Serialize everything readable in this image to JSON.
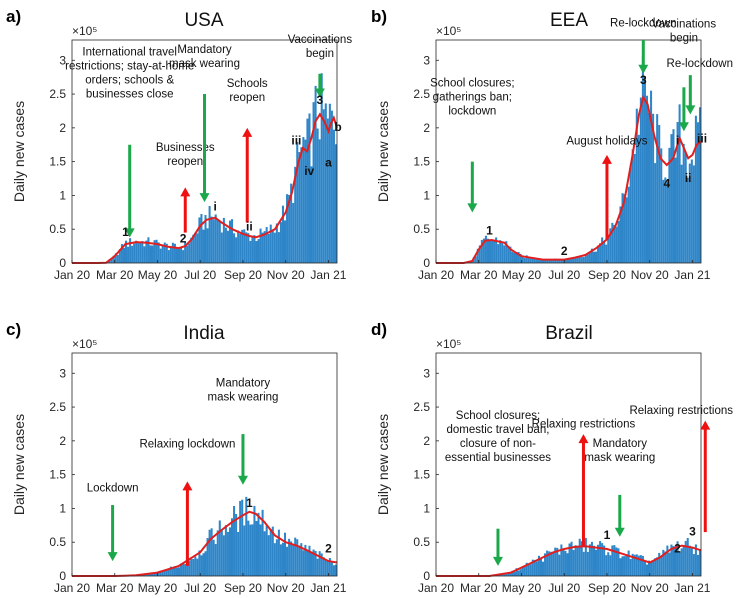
{
  "chart_data": [
    {
      "type": "bar",
      "panel_label": "a)",
      "title": "USA",
      "ylabel": "Daily new cases",
      "yexp": "×10⁵",
      "ylim": [
        0,
        3.3
      ],
      "yticks": [
        "0",
        "0.5",
        "1",
        "1.5",
        "2",
        "2.5",
        "3"
      ],
      "xticks": [
        "Jan 20",
        "Mar 20",
        "May 20",
        "Jul 20",
        "Sep 20",
        "Nov 20",
        "Jan 21"
      ],
      "xlim": [
        0,
        12.4
      ],
      "bar_color": "#2e86c9",
      "line_color": "#e02020",
      "trend_points": [
        [
          0,
          0
        ],
        [
          1.2,
          0
        ],
        [
          1.6,
          0.005
        ],
        [
          2.0,
          0.1
        ],
        [
          2.5,
          0.28
        ],
        [
          3.0,
          0.31
        ],
        [
          3.5,
          0.3
        ],
        [
          4.0,
          0.28
        ],
        [
          4.5,
          0.24
        ],
        [
          5.0,
          0.22
        ],
        [
          5.3,
          0.25
        ],
        [
          5.6,
          0.35
        ],
        [
          6.0,
          0.55
        ],
        [
          6.3,
          0.64
        ],
        [
          6.7,
          0.67
        ],
        [
          7.0,
          0.6
        ],
        [
          7.5,
          0.5
        ],
        [
          8.0,
          0.43
        ],
        [
          8.3,
          0.4
        ],
        [
          8.6,
          0.38
        ],
        [
          9.0,
          0.42
        ],
        [
          9.5,
          0.5
        ],
        [
          10.0,
          0.75
        ],
        [
          10.3,
          1.05
        ],
        [
          10.6,
          1.5
        ],
        [
          10.8,
          1.7
        ],
        [
          11.0,
          1.65
        ],
        [
          11.2,
          1.85
        ],
        [
          11.4,
          2.1
        ],
        [
          11.6,
          2.2
        ],
        [
          11.8,
          2.1
        ],
        [
          12.0,
          1.95
        ],
        [
          12.1,
          2.05
        ],
        [
          12.25,
          2.15
        ],
        [
          12.4,
          2.0
        ]
      ],
      "annotations": [
        {
          "text": [
            "International travel",
            "restrictions; stay-at-home",
            "orders; schools &",
            "businesses close"
          ],
          "x": 2.7,
          "y_text": 2.45,
          "arrow": "green",
          "arrow_from": 1.75,
          "arrow_to": 0.38
        },
        {
          "text": [
            "Businesses",
            "reopen"
          ],
          "x": 5.3,
          "y_text": 1.45,
          "arrow": "red",
          "arrow_from": 0.45,
          "arrow_to": 1.12
        },
        {
          "text": [
            "Mandatory",
            "mask wearing"
          ],
          "x": 6.2,
          "y_text": 2.9,
          "arrow": "green",
          "arrow_from": 2.5,
          "arrow_to": 0.9
        },
        {
          "text": [
            "Schools",
            "reopen"
          ],
          "x": 8.2,
          "y_text": 2.4,
          "arrow": "red",
          "arrow_from": 0.6,
          "arrow_to": 2.0
        },
        {
          "text": [
            "Vaccinations",
            "begin"
          ],
          "x": 11.6,
          "y_text": 3.05,
          "arrow": "green",
          "arrow_from": 2.8,
          "arrow_to": 2.45
        }
      ],
      "markers": [
        {
          "label": "1",
          "x": 2.5,
          "y": 0.4
        },
        {
          "label": "2",
          "x": 5.2,
          "y": 0.3
        },
        {
          "label": "i",
          "x": 6.7,
          "y": 0.78
        },
        {
          "label": "ii",
          "x": 8.3,
          "y": 0.48
        },
        {
          "label": "iii",
          "x": 10.5,
          "y": 1.75
        },
        {
          "label": "iv",
          "x": 11.1,
          "y": 1.3
        },
        {
          "label": "3",
          "x": 11.6,
          "y": 2.35
        },
        {
          "label": "a",
          "x": 12.0,
          "y": 1.43
        },
        {
          "label": "b",
          "x": 12.45,
          "y": 1.95
        }
      ]
    },
    {
      "type": "bar",
      "panel_label": "b)",
      "title": "EEA",
      "ylabel": "Daily new cases",
      "yexp": "×10⁵",
      "ylim": [
        0,
        3.3
      ],
      "yticks": [
        "0",
        "0.5",
        "1",
        "1.5",
        "2",
        "2.5",
        "3"
      ],
      "xticks": [
        "Jan 20",
        "Mar 20",
        "May 20",
        "Jul 20",
        "Sep 20",
        "Nov 20",
        "Jan 21"
      ],
      "xlim": [
        0,
        12.4
      ],
      "bar_color": "#2e86c9",
      "line_color": "#e02020",
      "trend_points": [
        [
          0,
          0
        ],
        [
          1.3,
          0
        ],
        [
          1.7,
          0.03
        ],
        [
          2.0,
          0.2
        ],
        [
          2.3,
          0.33
        ],
        [
          2.6,
          0.34
        ],
        [
          2.9,
          0.32
        ],
        [
          3.2,
          0.3
        ],
        [
          3.5,
          0.2
        ],
        [
          4.0,
          0.1
        ],
        [
          5.0,
          0.05
        ],
        [
          6.0,
          0.05
        ],
        [
          6.5,
          0.08
        ],
        [
          7.0,
          0.12
        ],
        [
          7.5,
          0.22
        ],
        [
          8.0,
          0.35
        ],
        [
          8.4,
          0.55
        ],
        [
          8.8,
          0.9
        ],
        [
          9.2,
          1.6
        ],
        [
          9.5,
          2.2
        ],
        [
          9.7,
          2.45
        ],
        [
          9.9,
          2.35
        ],
        [
          10.2,
          1.9
        ],
        [
          10.5,
          1.55
        ],
        [
          10.8,
          1.45
        ],
        [
          11.1,
          1.55
        ],
        [
          11.4,
          1.85
        ],
        [
          11.6,
          1.7
        ],
        [
          11.8,
          1.55
        ],
        [
          12.0,
          1.6
        ],
        [
          12.2,
          1.75
        ],
        [
          12.4,
          1.8
        ]
      ],
      "annotations": [
        {
          "text": [
            "School closures;",
            "gatherings ban;",
            "lockdown"
          ],
          "x": 1.7,
          "y_text": 2.2,
          "arrow": "green",
          "arrow_from": 1.5,
          "arrow_to": 0.75
        },
        {
          "text": [
            "August holidays"
          ],
          "x": 8.0,
          "y_text": 1.75,
          "arrow": "red",
          "arrow_from": 0.35,
          "arrow_to": 1.6
        },
        {
          "text": [
            "Re-lockdown"
          ],
          "x": 9.7,
          "y_text": 3.5,
          "arrow": "green",
          "arrow_from": 3.3,
          "arrow_to": 2.8
        },
        {
          "text": [
            "Vaccinations",
            "begin"
          ],
          "x": 11.6,
          "y_text": 3.28,
          "arrow": "green",
          "arrow_from": 2.6,
          "arrow_to": 1.95
        },
        {
          "text": [
            "Re-lockdown"
          ],
          "x": 11.9,
          "y_text": 2.9,
          "arrow": "green",
          "arrow_from": 2.78,
          "arrow_to": 2.2
        }
      ],
      "markers": [
        {
          "label": "1",
          "x": 2.5,
          "y": 0.42
        },
        {
          "label": "2",
          "x": 6.0,
          "y": 0.12
        },
        {
          "label": "3",
          "x": 9.7,
          "y": 2.65
        },
        {
          "label": "4",
          "x": 10.8,
          "y": 1.12
        },
        {
          "label": "i",
          "x": 11.3,
          "y": 1.75
        },
        {
          "label": "ii",
          "x": 11.8,
          "y": 1.2
        },
        {
          "label": "iii",
          "x": 12.45,
          "y": 1.78
        }
      ]
    },
    {
      "type": "bar",
      "panel_label": "c)",
      "title": "India",
      "ylabel": "Daily new cases",
      "yexp": "×10⁵",
      "ylim": [
        0,
        3.3
      ],
      "yticks": [
        "0",
        "0.5",
        "1",
        "1.5",
        "2",
        "2.5",
        "3"
      ],
      "xticks": [
        "Jan 20",
        "Mar 20",
        "May 20",
        "Jul 20",
        "Sep 20",
        "Nov 20",
        "Jan 21"
      ],
      "xlim": [
        0,
        12.4
      ],
      "bar_color": "#2e86c9",
      "line_color": "#e02020",
      "trend_points": [
        [
          0,
          0
        ],
        [
          2.0,
          0
        ],
        [
          3.0,
          0.01
        ],
        [
          4.0,
          0.05
        ],
        [
          5.0,
          0.15
        ],
        [
          6.0,
          0.35
        ],
        [
          6.5,
          0.55
        ],
        [
          7.0,
          0.68
        ],
        [
          7.5,
          0.8
        ],
        [
          8.0,
          0.9
        ],
        [
          8.3,
          0.95
        ],
        [
          8.6,
          0.92
        ],
        [
          9.0,
          0.8
        ],
        [
          9.5,
          0.6
        ],
        [
          10.0,
          0.5
        ],
        [
          10.5,
          0.45
        ],
        [
          11.0,
          0.38
        ],
        [
          11.5,
          0.3
        ],
        [
          12.0,
          0.22
        ],
        [
          12.4,
          0.2
        ]
      ],
      "annotations": [
        {
          "text": [
            "Lockdown"
          ],
          "x": 1.9,
          "y_text": 1.25,
          "arrow": "green",
          "arrow_from": 1.05,
          "arrow_to": 0.22
        },
        {
          "text": [
            "Relaxing lockdown"
          ],
          "x": 5.4,
          "y_text": 1.9,
          "arrow": "red",
          "arrow_from": 0.15,
          "arrow_to": 1.4
        },
        {
          "text": [
            "Mandatory",
            "mask wearing"
          ],
          "x": 8.0,
          "y_text": 2.6,
          "arrow": "green",
          "arrow_from": 2.1,
          "arrow_to": 1.35
        }
      ],
      "markers": [
        {
          "label": "1",
          "x": 8.3,
          "y": 1.02
        },
        {
          "label": "2",
          "x": 12.0,
          "y": 0.35
        }
      ]
    },
    {
      "type": "bar",
      "panel_label": "d)",
      "title": "Brazil",
      "ylabel": "Daily new cases",
      "yexp": "×10⁵",
      "ylim": [
        0,
        3.3
      ],
      "yticks": [
        "0",
        "0.5",
        "1",
        "1.5",
        "2",
        "2.5",
        "3"
      ],
      "xticks": [
        "Jan 20",
        "Mar 20",
        "May 20",
        "Jul 20",
        "Sep 20",
        "Nov 20",
        "Jan 21"
      ],
      "xlim": [
        0,
        12.4
      ],
      "bar_color": "#2e86c9",
      "line_color": "#e02020",
      "trend_points": [
        [
          0,
          0
        ],
        [
          2.5,
          0
        ],
        [
          3.5,
          0.05
        ],
        [
          4.5,
          0.2
        ],
        [
          5.5,
          0.35
        ],
        [
          6.0,
          0.4
        ],
        [
          6.5,
          0.43
        ],
        [
          7.0,
          0.44
        ],
        [
          7.5,
          0.42
        ],
        [
          8.0,
          0.4
        ],
        [
          8.5,
          0.35
        ],
        [
          9.0,
          0.3
        ],
        [
          9.5,
          0.25
        ],
        [
          10.0,
          0.2
        ],
        [
          10.5,
          0.28
        ],
        [
          11.0,
          0.4
        ],
        [
          11.5,
          0.45
        ],
        [
          12.0,
          0.42
        ],
        [
          12.4,
          0.38
        ]
      ],
      "annotations": [
        {
          "text": [
            "School closures;",
            "domestic travel ban;",
            "closure of non-",
            "essential businesses"
          ],
          "x": 2.9,
          "y_text": 1.7,
          "arrow": "green",
          "arrow_from": 0.7,
          "arrow_to": 0.15
        },
        {
          "text": [
            "Relaxing restrictions"
          ],
          "x": 6.9,
          "y_text": 2.2,
          "arrow": "red",
          "arrow_from": 0.45,
          "arrow_to": 2.1
        },
        {
          "text": [
            "Mandatory",
            "mask wearing"
          ],
          "x": 8.6,
          "y_text": 1.7,
          "arrow": "green",
          "arrow_from": 1.2,
          "arrow_to": 0.58
        },
        {
          "text": [
            "Relaxing restrictions"
          ],
          "x": 12.6,
          "y_text": 2.4,
          "arrow": "red",
          "arrow_from": 0.65,
          "arrow_to": 2.3
        }
      ],
      "markers": [
        {
          "label": "1",
          "x": 8.0,
          "y": 0.55
        },
        {
          "label": "2",
          "x": 11.3,
          "y": 0.35
        },
        {
          "label": "3",
          "x": 12.0,
          "y": 0.6
        }
      ]
    }
  ]
}
